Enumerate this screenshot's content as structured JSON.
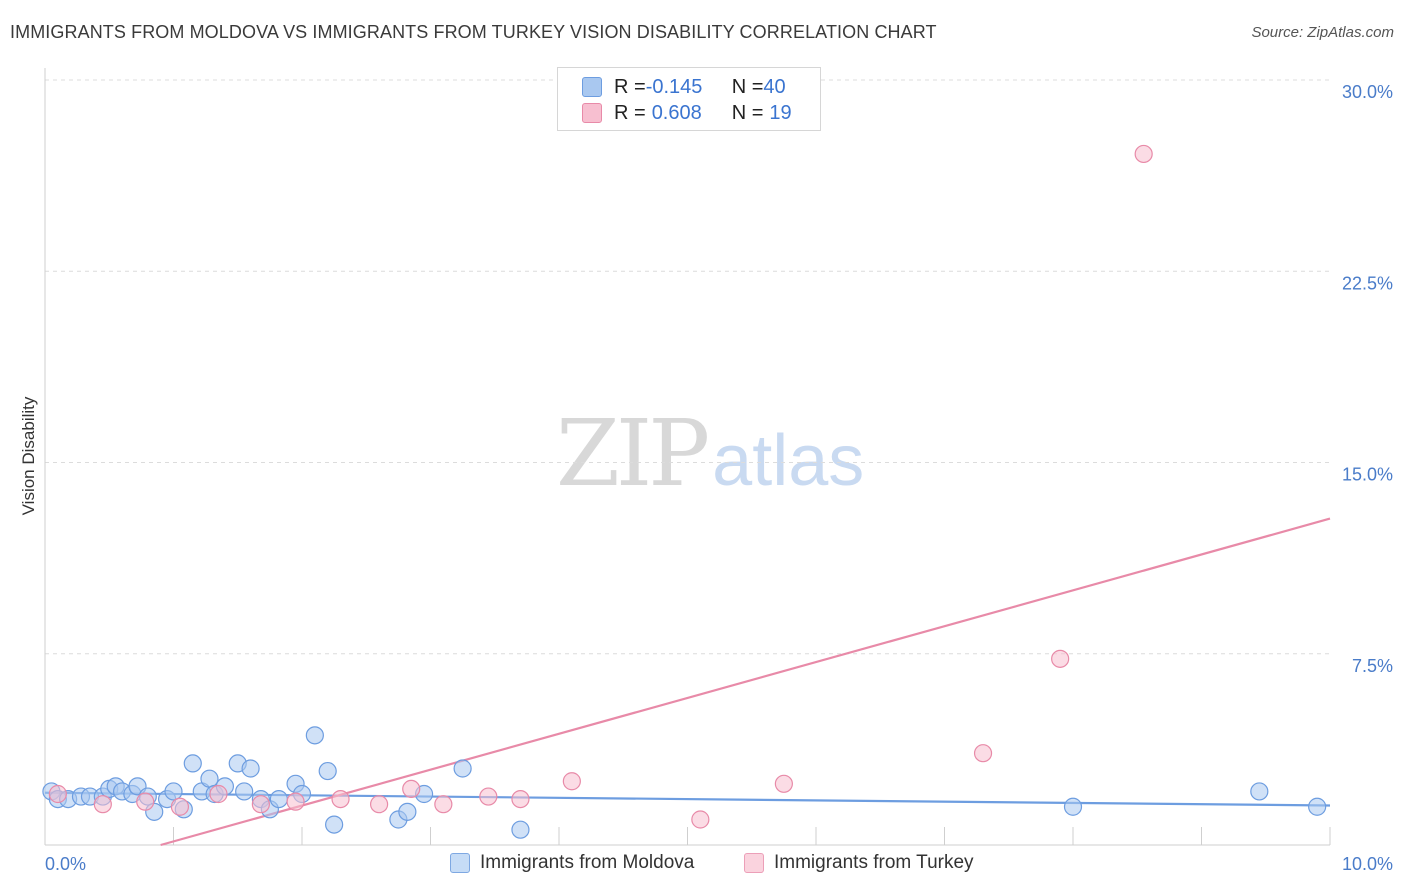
{
  "title": "IMMIGRANTS FROM MOLDOVA VS IMMIGRANTS FROM TURKEY VISION DISABILITY CORRELATION CHART",
  "source": "Source: ZipAtlas.com",
  "watermark": {
    "zip": "ZIP",
    "atlas": "atlas"
  },
  "legend": {
    "rows": [
      {
        "r_label": "R = ",
        "r_value": "-0.145",
        "n_label": "N = ",
        "n_value": "40",
        "color": "#a9c8f0",
        "border": "#6d9de0"
      },
      {
        "r_label": "R = ",
        "r_value": "0.608",
        "n_label": "N = ",
        "n_value": "19",
        "color": "#f7bfd0",
        "border": "#e88aa8"
      }
    ]
  },
  "bottom_legend": {
    "moldova": "Immigrants from Moldova",
    "turkey": "Immigrants from Turkey"
  },
  "chart_data": {
    "type": "scatter",
    "title": "IMMIGRANTS FROM MOLDOVA VS IMMIGRANTS FROM TURKEY VISION DISABILITY CORRELATION CHART",
    "xlabel": "",
    "ylabel": "Vision Disability",
    "xlim": [
      0,
      10
    ],
    "ylim": [
      0,
      30
    ],
    "x_tick_labels": [
      "0.0%",
      "10.0%"
    ],
    "y_ticks": [
      7.5,
      15.0,
      22.5,
      30.0
    ],
    "y_tick_labels": [
      "7.5%",
      "15.0%",
      "22.5%",
      "30.0%"
    ],
    "series": [
      {
        "name": "Immigrants from Moldova",
        "color": "#6d9de0",
        "fill": "#a9c8f0",
        "points": [
          [
            0.05,
            2.1
          ],
          [
            0.1,
            1.8
          ],
          [
            0.18,
            1.8
          ],
          [
            0.28,
            1.9
          ],
          [
            0.35,
            1.9
          ],
          [
            0.45,
            1.9
          ],
          [
            0.5,
            2.2
          ],
          [
            0.55,
            2.3
          ],
          [
            0.6,
            2.1
          ],
          [
            0.68,
            2.0
          ],
          [
            0.72,
            2.3
          ],
          [
            0.8,
            1.9
          ],
          [
            0.85,
            1.3
          ],
          [
            0.95,
            1.8
          ],
          [
            1.0,
            2.1
          ],
          [
            1.08,
            1.4
          ],
          [
            1.15,
            3.2
          ],
          [
            1.22,
            2.1
          ],
          [
            1.28,
            2.6
          ],
          [
            1.32,
            2.0
          ],
          [
            1.4,
            2.3
          ],
          [
            1.5,
            3.2
          ],
          [
            1.55,
            2.1
          ],
          [
            1.6,
            3.0
          ],
          [
            1.68,
            1.8
          ],
          [
            1.75,
            1.4
          ],
          [
            1.82,
            1.8
          ],
          [
            1.95,
            2.4
          ],
          [
            2.0,
            2.0
          ],
          [
            2.1,
            4.3
          ],
          [
            2.2,
            2.9
          ],
          [
            2.25,
            0.8
          ],
          [
            2.75,
            1.0
          ],
          [
            2.82,
            1.3
          ],
          [
            2.95,
            2.0
          ],
          [
            3.25,
            3.0
          ],
          [
            3.7,
            0.6
          ],
          [
            8.0,
            1.5
          ],
          [
            9.45,
            2.1
          ],
          [
            9.9,
            1.5
          ]
        ],
        "trend": [
          [
            0,
            2.05
          ],
          [
            10,
            1.55
          ]
        ]
      },
      {
        "name": "Immigrants from Turkey",
        "color": "#e88aa8",
        "fill": "#f7bfd0",
        "points": [
          [
            0.1,
            2.0
          ],
          [
            0.45,
            1.6
          ],
          [
            0.78,
            1.7
          ],
          [
            1.05,
            1.5
          ],
          [
            1.35,
            2.0
          ],
          [
            1.68,
            1.6
          ],
          [
            1.95,
            1.7
          ],
          [
            2.3,
            1.8
          ],
          [
            2.6,
            1.6
          ],
          [
            2.85,
            2.2
          ],
          [
            3.1,
            1.6
          ],
          [
            3.45,
            1.9
          ],
          [
            3.7,
            1.8
          ],
          [
            4.1,
            2.5
          ],
          [
            5.1,
            1.0
          ],
          [
            5.75,
            2.4
          ],
          [
            7.3,
            3.6
          ],
          [
            7.9,
            7.3
          ],
          [
            8.55,
            27.1
          ]
        ],
        "trend": [
          [
            0.9,
            0
          ],
          [
            10,
            12.8
          ]
        ]
      }
    ]
  }
}
